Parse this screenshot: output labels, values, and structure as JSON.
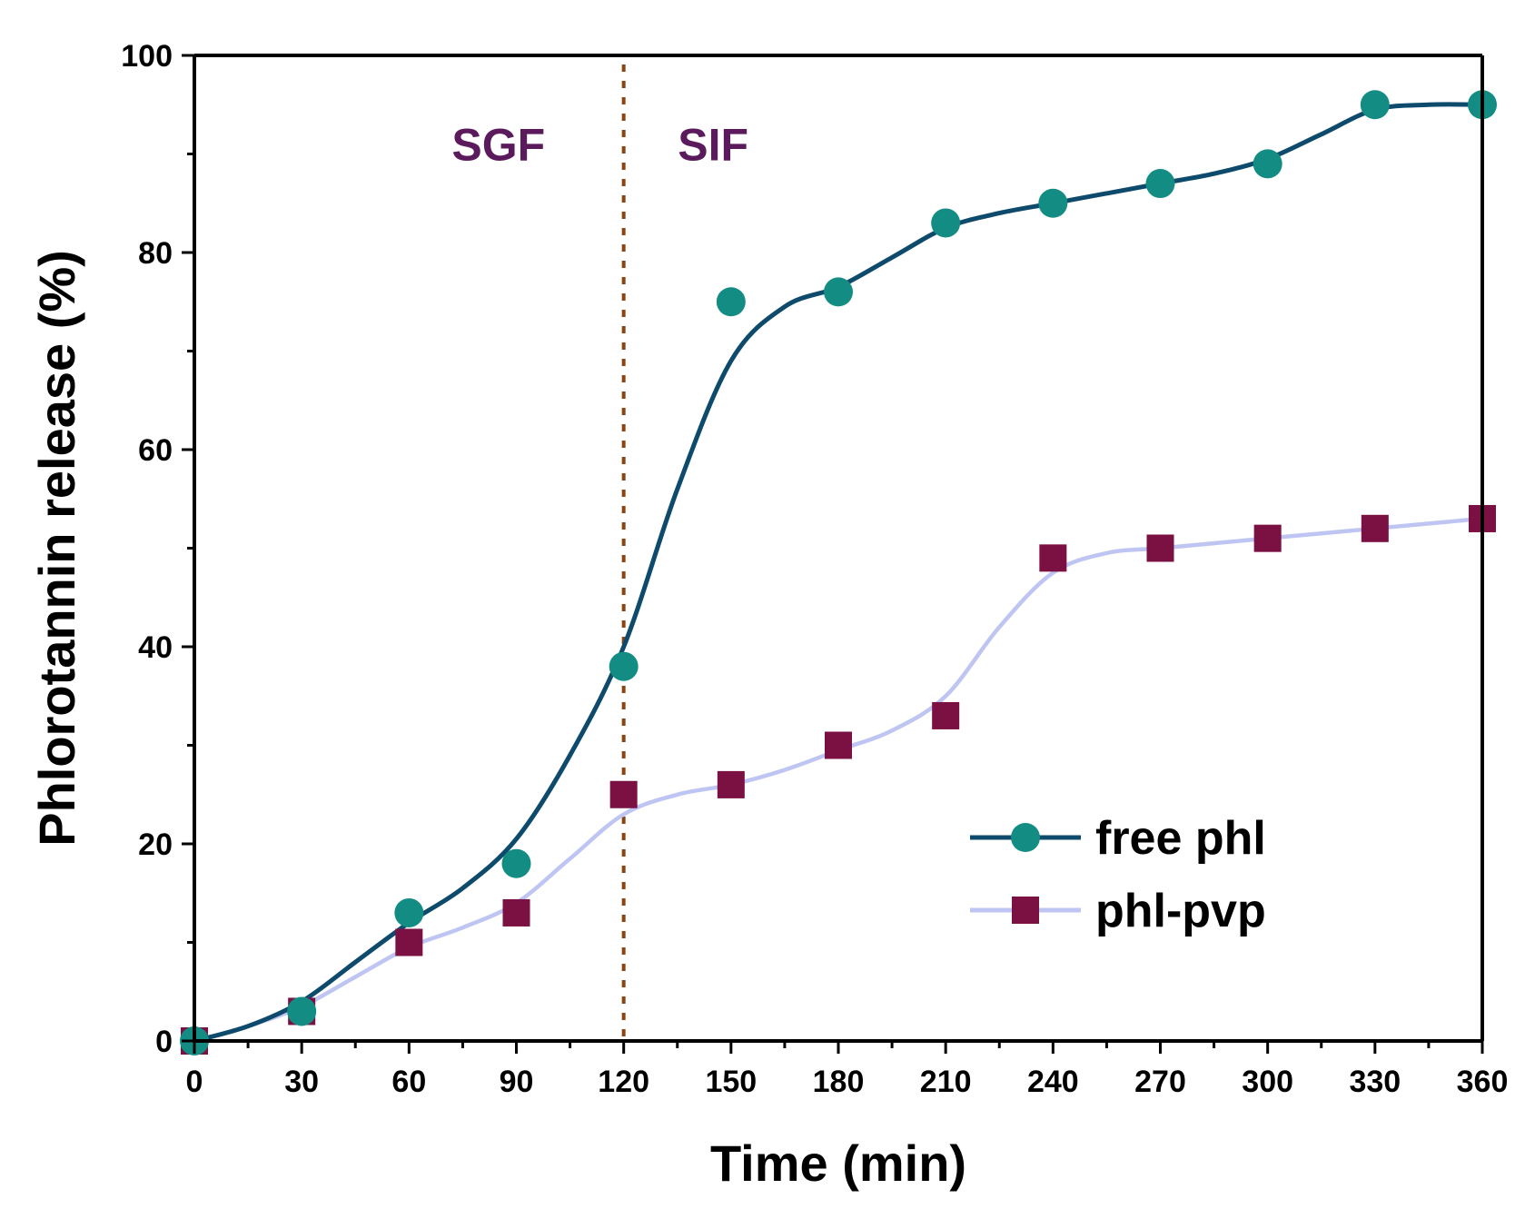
{
  "chart_data": {
    "type": "line",
    "title": "",
    "xlabel": "Time (min)",
    "ylabel": "Phlorotannin release (%)",
    "xlim": [
      0,
      360
    ],
    "ylim": [
      0,
      100
    ],
    "x_ticks": [
      0,
      30,
      60,
      90,
      120,
      150,
      180,
      210,
      240,
      270,
      300,
      330,
      360
    ],
    "x_tick_labels": [
      "0",
      "30",
      "60",
      "90",
      "120",
      "150",
      "180",
      "210",
      "240",
      "270",
      "300",
      "330",
      "360"
    ],
    "y_ticks": [
      0,
      20,
      40,
      60,
      80,
      100
    ],
    "y_tick_labels": [
      "0",
      "20",
      "40",
      "60",
      "80",
      "100"
    ],
    "grid": false,
    "legend_position": "bottom-right",
    "divider": {
      "x": 120,
      "color": "#8B4513"
    },
    "regions": [
      {
        "label": "SGF",
        "x": 85,
        "y": 91,
        "color": "#5B1A5C"
      },
      {
        "label": "SIF",
        "x": 145,
        "y": 91,
        "color": "#5B1A5C"
      }
    ],
    "series": [
      {
        "name": "free phl",
        "marker": "circle",
        "marker_color": "#138D83",
        "line_color": "#0D4A6B",
        "x": [
          0,
          30,
          60,
          90,
          120,
          150,
          180,
          210,
          240,
          270,
          300,
          330,
          360
        ],
        "y": [
          0,
          3,
          13,
          18,
          38,
          75,
          76,
          83,
          85,
          87,
          89,
          95,
          95
        ],
        "curve_x": [
          0,
          15,
          30,
          45,
          60,
          75,
          90,
          105,
          120,
          135,
          150,
          165,
          180,
          195,
          210,
          225,
          240,
          255,
          270,
          285,
          300,
          315,
          330,
          345,
          360
        ],
        "curve_y": [
          0,
          1.5,
          4,
          8,
          12,
          15.5,
          20.5,
          29,
          40,
          56,
          69,
          74.5,
          76.5,
          79.5,
          82.5,
          84,
          85,
          86,
          87,
          88,
          89.5,
          92,
          94.5,
          95,
          95
        ]
      },
      {
        "name": "phl-pvp",
        "marker": "square",
        "marker_color": "#7B1042",
        "line_color": "#BFC5F2",
        "x": [
          0,
          30,
          60,
          90,
          120,
          150,
          180,
          210,
          240,
          270,
          300,
          330,
          360
        ],
        "y": [
          0,
          3,
          10,
          13,
          25,
          26,
          30,
          33,
          49,
          50,
          51,
          52,
          53
        ],
        "curve_x": [
          0,
          15,
          30,
          45,
          60,
          75,
          90,
          105,
          120,
          135,
          150,
          165,
          180,
          195,
          210,
          225,
          240,
          255,
          270,
          285,
          300,
          315,
          330,
          345,
          360
        ],
        "curve_y": [
          0,
          1.5,
          3.5,
          6.5,
          9.5,
          11.5,
          14,
          18.5,
          23,
          25,
          26,
          27.5,
          29.5,
          31.5,
          35,
          42,
          47.5,
          49.5,
          50,
          50.5,
          51,
          51.5,
          52,
          52.5,
          53
        ]
      }
    ]
  }
}
